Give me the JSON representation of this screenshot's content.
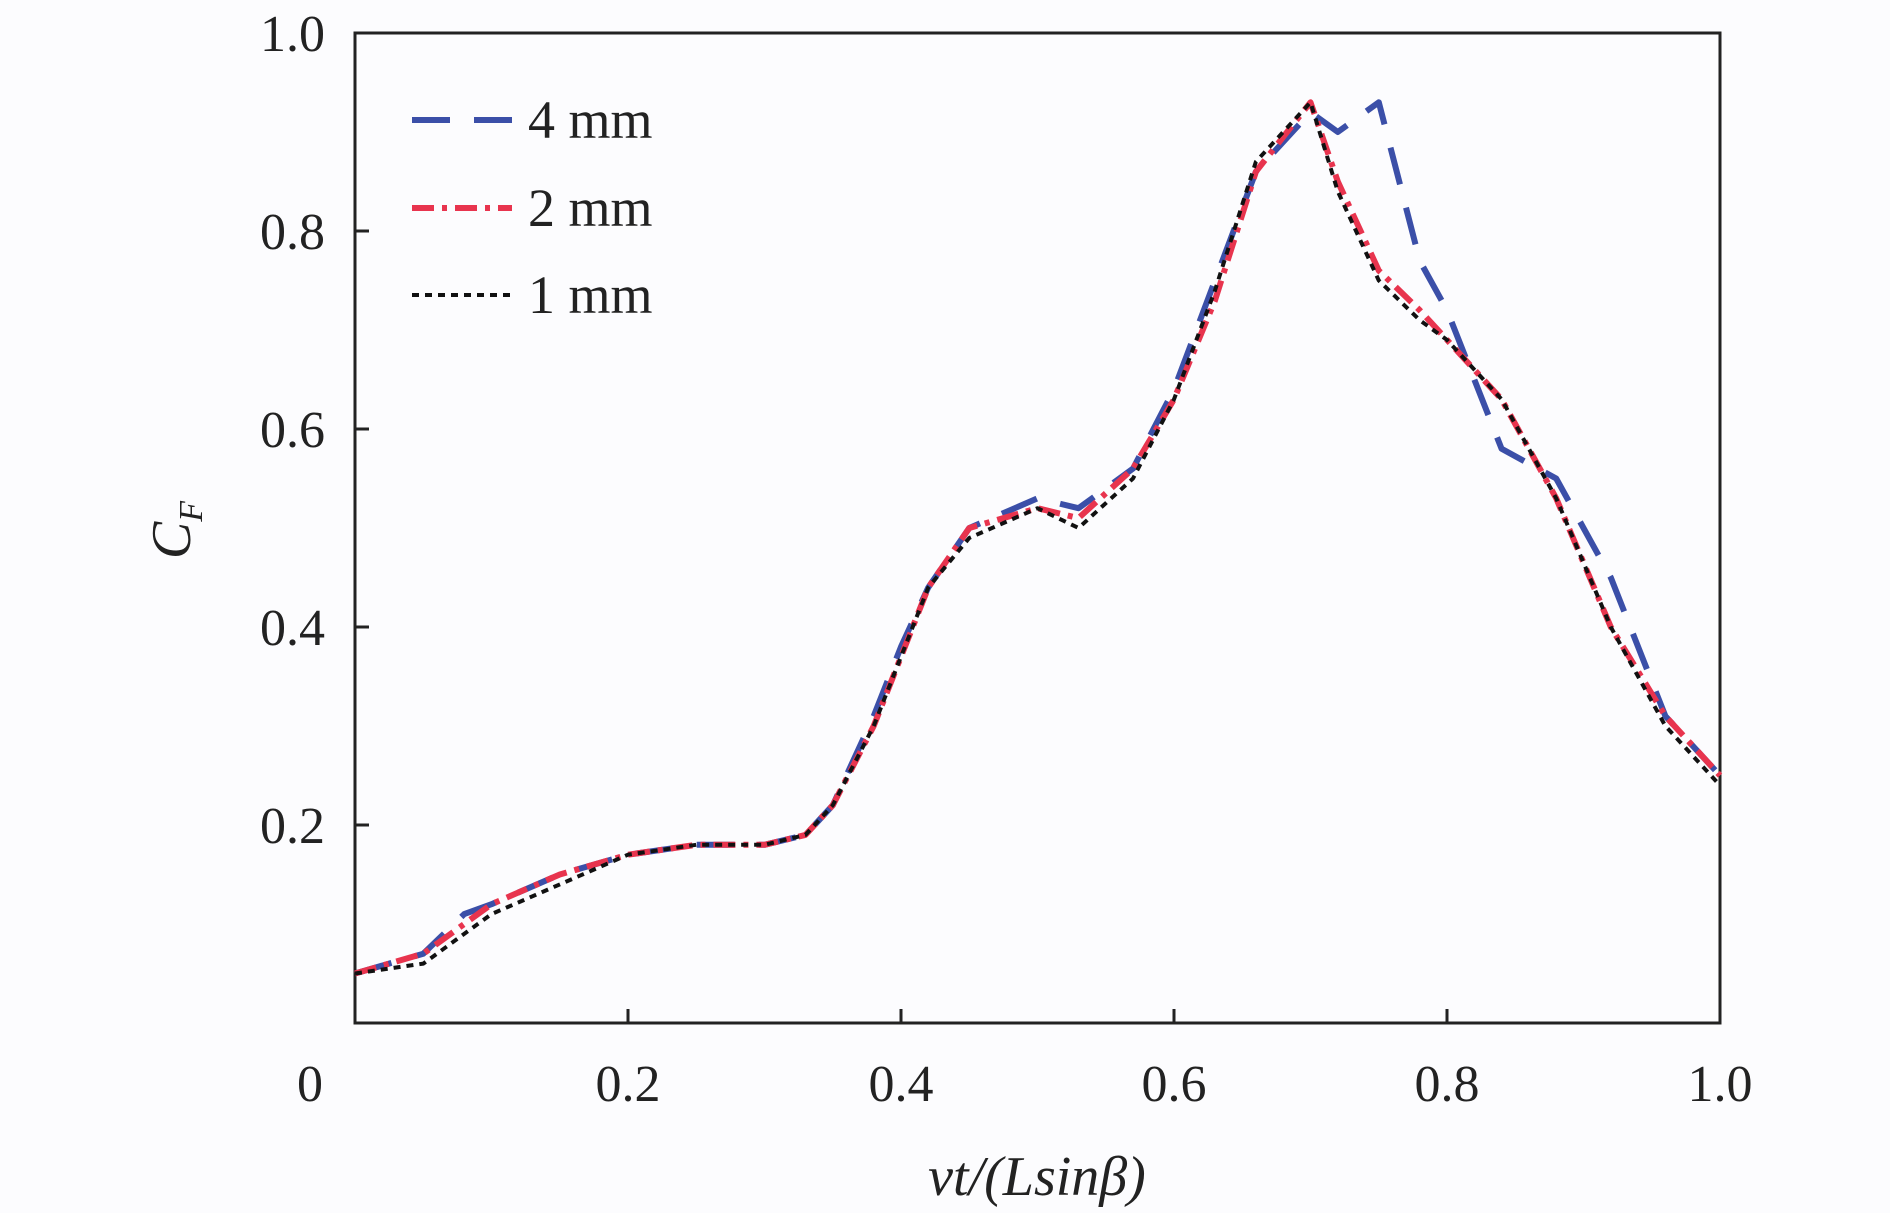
{
  "chart_data": {
    "type": "line",
    "title": "",
    "xlabel": "vt/(Lsinβ)",
    "ylabel": "C_F",
    "xlim": [
      0,
      1.0
    ],
    "ylim": [
      0,
      1.0
    ],
    "x_ticks": [
      "0",
      "0.2",
      "0.4",
      "0.6",
      "0.8",
      "1.0"
    ],
    "y_ticks": [
      "0.2",
      "0.4",
      "0.6",
      "0.8",
      "1.0"
    ],
    "grid": false,
    "legend_position": "top-left",
    "x": [
      0,
      0.05,
      0.08,
      0.1,
      0.15,
      0.2,
      0.25,
      0.3,
      0.33,
      0.35,
      0.38,
      0.4,
      0.42,
      0.45,
      0.5,
      0.53,
      0.57,
      0.6,
      0.63,
      0.66,
      0.7,
      0.72,
      0.75,
      0.78,
      0.8,
      0.84,
      0.88,
      0.92,
      0.96,
      1.0
    ],
    "series": [
      {
        "name": "4 mm",
        "color": "#3b4fa8",
        "dash": "38 24",
        "values": [
          0.05,
          0.07,
          0.11,
          0.12,
          0.15,
          0.17,
          0.18,
          0.18,
          0.19,
          0.22,
          0.31,
          0.38,
          0.44,
          0.5,
          0.53,
          0.52,
          0.56,
          0.64,
          0.75,
          0.86,
          0.92,
          0.9,
          0.93,
          0.77,
          0.72,
          0.58,
          0.55,
          0.45,
          0.31,
          0.25
        ]
      },
      {
        "name": "2 mm",
        "color": "#e8344e",
        "dash": "22 8 5 8",
        "values": [
          0.05,
          0.07,
          0.1,
          0.12,
          0.15,
          0.17,
          0.18,
          0.18,
          0.19,
          0.22,
          0.3,
          0.37,
          0.44,
          0.5,
          0.52,
          0.51,
          0.56,
          0.63,
          0.73,
          0.86,
          0.93,
          0.85,
          0.76,
          0.72,
          0.69,
          0.63,
          0.53,
          0.4,
          0.31,
          0.25
        ]
      },
      {
        "name": "1 mm",
        "color": "#111111",
        "dash": "7 6",
        "values": [
          0.05,
          0.06,
          0.09,
          0.11,
          0.14,
          0.17,
          0.18,
          0.18,
          0.19,
          0.22,
          0.3,
          0.37,
          0.44,
          0.49,
          0.52,
          0.5,
          0.55,
          0.63,
          0.74,
          0.87,
          0.93,
          0.84,
          0.75,
          0.71,
          0.69,
          0.63,
          0.53,
          0.4,
          0.3,
          0.24
        ]
      }
    ]
  }
}
